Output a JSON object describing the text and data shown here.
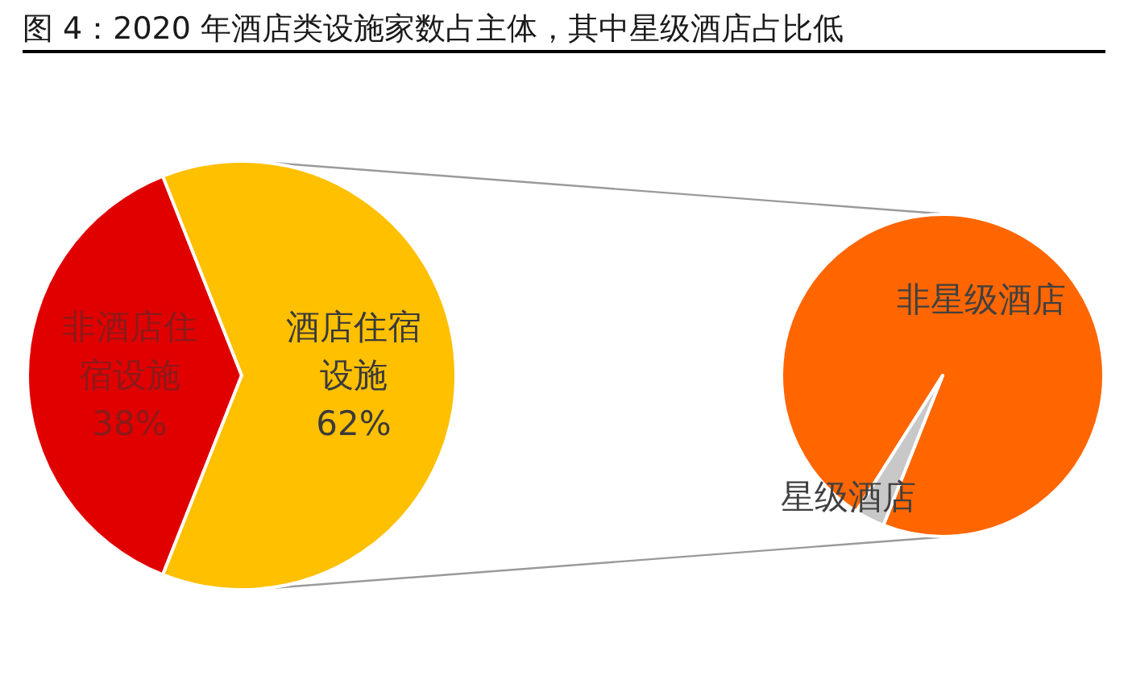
{
  "chart_data": [
    {
      "type": "pie",
      "title": "图 4：2020 年酒店类设施家数占主体，其中星级酒店占比低",
      "categories": [
        "非酒店住宿设施",
        "酒店住宿设施"
      ],
      "values": [
        38,
        62
      ],
      "colors": [
        "#e00000",
        "#ffc000"
      ],
      "value_labels": [
        "38%",
        "62%"
      ]
    },
    {
      "type": "pie",
      "categories": [
        "非星级酒店",
        "星级酒店"
      ],
      "values": [
        97,
        3
      ],
      "colors": [
        "#ff6600",
        "#c8c8c8"
      ]
    }
  ]
}
